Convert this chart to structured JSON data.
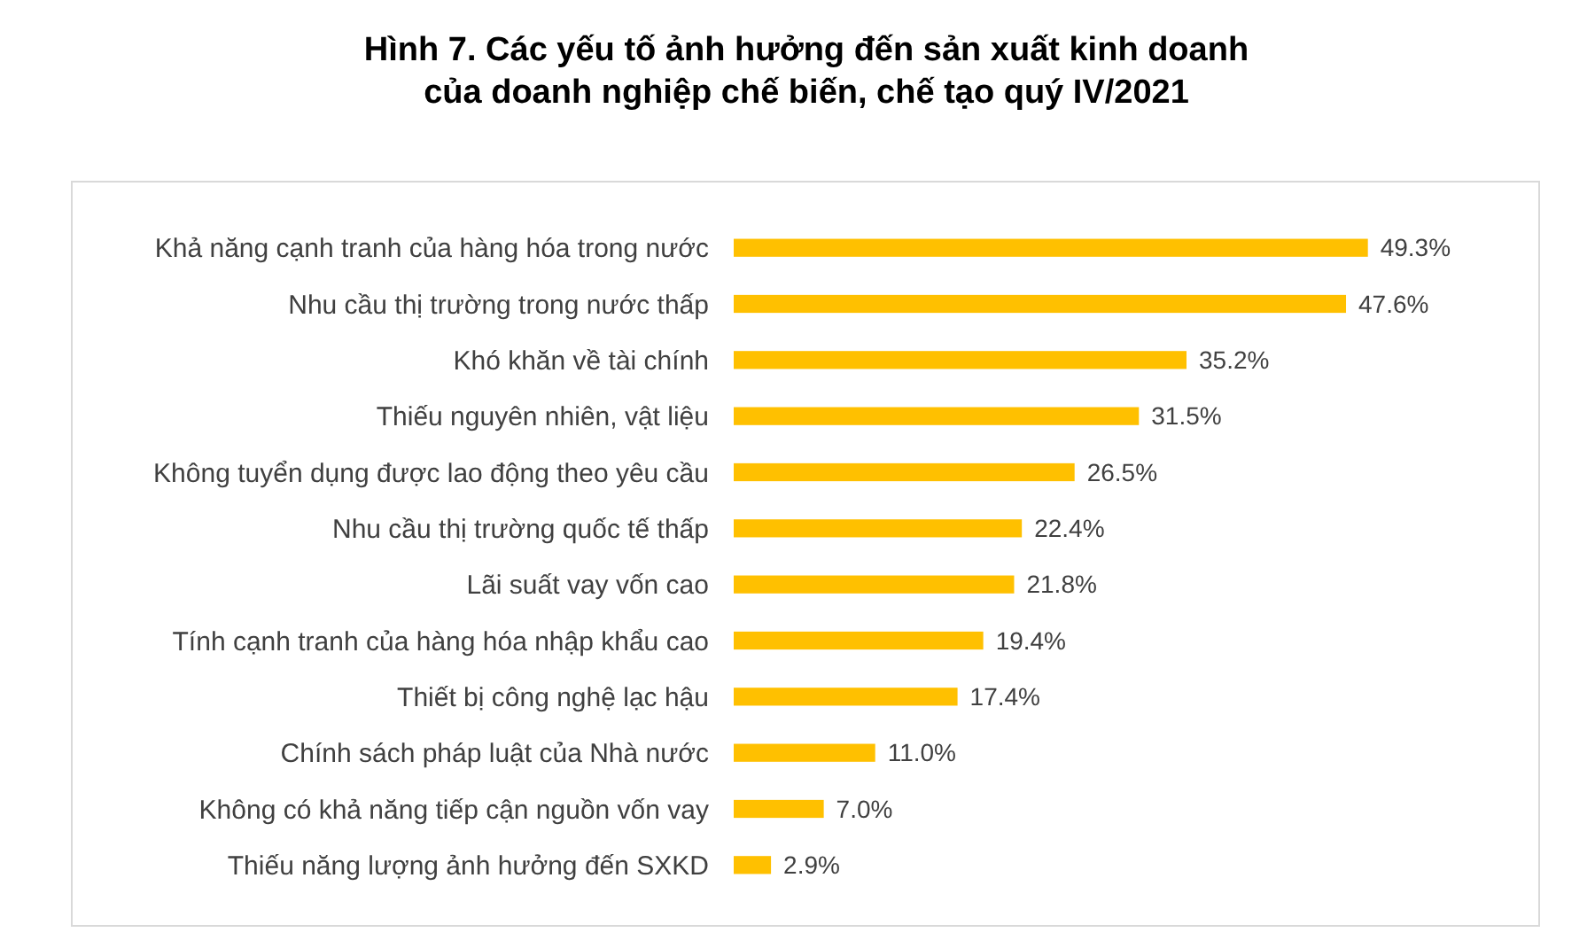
{
  "chart_data": {
    "type": "bar",
    "orientation": "horizontal",
    "title": "Hình 7. Các yếu tố ảnh hưởng đến sản xuất kinh doanh\ncủa doanh nghiệp chế biến, chế tạo quý IV/2021",
    "categories": [
      "Khả năng cạnh tranh của hàng hóa trong nước",
      "Nhu cầu thị trường trong nước thấp",
      "Khó khăn về tài chính",
      "Thiếu nguyên nhiên, vật liệu",
      "Không tuyển dụng được lao động theo yêu cầu",
      "Nhu cầu thị trường quốc tế thấp",
      "Lãi suất vay vốn cao",
      "Tính cạnh tranh của hàng hóa nhập khẩu cao",
      "Thiết bị công nghệ lạc hậu",
      "Chính sách pháp luật của Nhà nước",
      "Không có khả năng tiếp cận nguồn vốn vay",
      "Thiếu năng lượng ảnh hưởng đến SXKD"
    ],
    "values": [
      49.3,
      47.6,
      35.2,
      31.5,
      26.5,
      22.4,
      21.8,
      19.4,
      17.4,
      11.0,
      7.0,
      2.9
    ],
    "value_labels": [
      "49.3%",
      "47.6%",
      "35.2%",
      "31.5%",
      "26.5%",
      "22.4%",
      "21.8%",
      "19.4%",
      "17.4%",
      "11.0%",
      "7.0%",
      "2.9%"
    ],
    "color": "#ffc000"
  }
}
